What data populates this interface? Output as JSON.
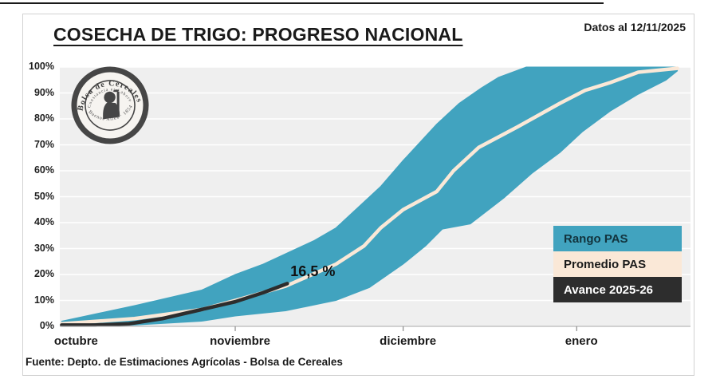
{
  "header": {
    "title": "COSECHA DE TRIGO: PROGRESO NACIONAL",
    "data_note": "Datos al 12/11/2025"
  },
  "logo": {
    "ring_text_top": "Bolsa de Cereales",
    "ring_text_bottom": "Buenos Aires · 1854",
    "inner_motto": "Constancia et Labore"
  },
  "footer": {
    "source": "Fuente: Depto. de Estimaciones Agrícolas - Bolsa de Cereales"
  },
  "legend": [
    {
      "label": "Rango PAS",
      "swatch_color": "#41a3bf",
      "text_color": "#12333d"
    },
    {
      "label": "Promedio PAS",
      "swatch_color": "#fae8d7",
      "text_color": "#1a1a1a"
    },
    {
      "label": "Avance 2025-26",
      "swatch_color": "#2d2d2d",
      "text_color": "#ffffff"
    }
  ],
  "chart_data": {
    "type": "area",
    "title": "COSECHA DE TRIGO: PROGRESO NACIONAL",
    "xlabel": "",
    "ylabel": "",
    "x_unit": "days_since_oct_1",
    "xlim": [
      0,
      112
    ],
    "ylim": [
      0,
      100
    ],
    "grid": true,
    "legend_position": "inside-right",
    "x_ticks": [
      {
        "day": 0,
        "label": "octubre",
        "tick_mark": false
      },
      {
        "day": 31,
        "label": "noviembre",
        "tick_mark": true
      },
      {
        "day": 61,
        "label": "diciembre",
        "tick_mark": true
      },
      {
        "day": 92,
        "label": "enero",
        "tick_mark": true
      }
    ],
    "y_tick_labels": [
      "0%",
      "10%",
      "20%",
      "30%",
      "40%",
      "50%",
      "60%",
      "70%",
      "80%",
      "90%",
      "100%"
    ],
    "band": {
      "name": "Rango PAS",
      "color": "#41a3bf",
      "upper": [
        [
          0,
          2
        ],
        [
          13,
          8
        ],
        [
          25,
          14
        ],
        [
          31,
          20
        ],
        [
          36,
          24
        ],
        [
          40,
          28
        ],
        [
          45,
          33
        ],
        [
          49,
          38
        ],
        [
          51,
          42
        ],
        [
          57,
          54
        ],
        [
          61,
          64
        ],
        [
          67,
          78
        ],
        [
          71,
          86
        ],
        [
          75,
          92
        ],
        [
          78,
          96
        ],
        [
          83,
          100
        ],
        [
          110,
          100
        ]
      ],
      "lower": [
        [
          0,
          0
        ],
        [
          13,
          0.5
        ],
        [
          25,
          2
        ],
        [
          31,
          4
        ],
        [
          40,
          6
        ],
        [
          49,
          10
        ],
        [
          55,
          15
        ],
        [
          61,
          24
        ],
        [
          65,
          31
        ],
        [
          68,
          37.5
        ],
        [
          73,
          39.5
        ],
        [
          79,
          49.5
        ],
        [
          84,
          59
        ],
        [
          89,
          67
        ],
        [
          93,
          75
        ],
        [
          98,
          83
        ],
        [
          103,
          89.5
        ],
        [
          108,
          95
        ],
        [
          110,
          98.5
        ]
      ]
    },
    "series": [
      {
        "name": "Promedio PAS",
        "color": "#fae8d7",
        "width": 4.5,
        "points": [
          [
            0,
            1
          ],
          [
            13,
            3
          ],
          [
            25,
            6.5
          ],
          [
            31,
            10
          ],
          [
            40,
            15.5
          ],
          [
            49,
            24
          ],
          [
            54,
            31
          ],
          [
            57,
            38
          ],
          [
            61,
            45
          ],
          [
            67,
            52
          ],
          [
            70,
            60
          ],
          [
            74.5,
            69
          ],
          [
            81.5,
            77
          ],
          [
            89,
            86
          ],
          [
            93.5,
            91
          ],
          [
            98,
            94
          ],
          [
            103,
            98
          ],
          [
            110,
            99.5
          ]
        ]
      },
      {
        "name": "Avance 2025-26",
        "color": "#2d2d2d",
        "width": 4.5,
        "points": [
          [
            0,
            0.5
          ],
          [
            6,
            0.5
          ],
          [
            12,
            1
          ],
          [
            18,
            3
          ],
          [
            25,
            6.5
          ],
          [
            31,
            9.5
          ],
          [
            36,
            13
          ],
          [
            40.3,
            16.5
          ]
        ]
      }
    ],
    "annotation": {
      "label": "16,5 %",
      "day": 40.3,
      "value": 16.5
    }
  }
}
